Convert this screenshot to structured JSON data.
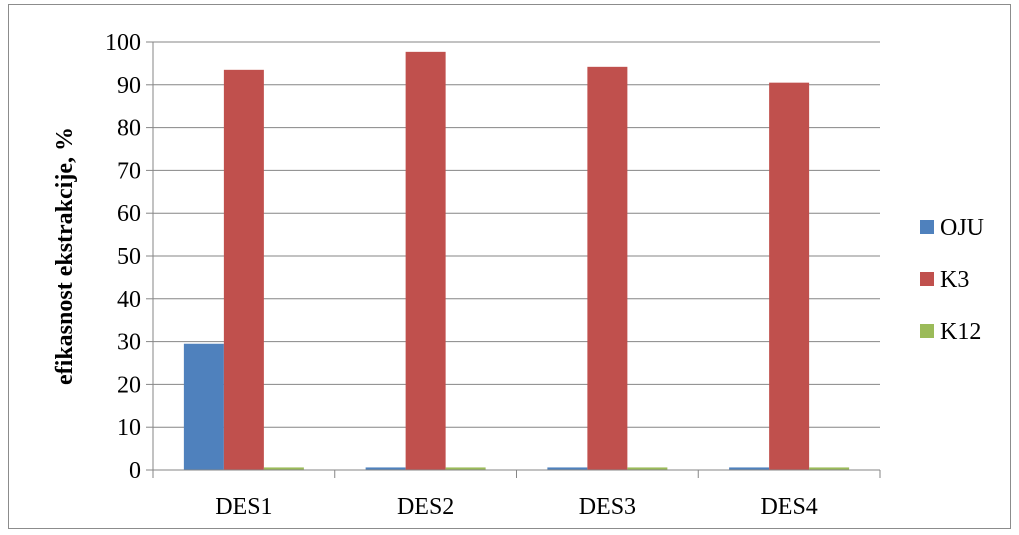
{
  "chart_data": {
    "type": "bar",
    "title": "",
    "xlabel": "",
    "ylabel": "efikasnost ekstrakcije, %",
    "categories": [
      "DES1",
      "DES2",
      "DES3",
      "DES4"
    ],
    "series": [
      {
        "name": "OJU",
        "values": [
          29.5,
          0,
          0,
          0
        ],
        "color": "#4f81bd"
      },
      {
        "name": "K3",
        "values": [
          93.5,
          97.7,
          94.2,
          90.5
        ],
        "color": "#c0504d"
      },
      {
        "name": "K12",
        "values": [
          0,
          0,
          0,
          0
        ],
        "color": "#9bbb59"
      }
    ],
    "ylim": [
      0,
      100
    ],
    "yticks": [
      "0",
      "10",
      "20",
      "30",
      "40",
      "50",
      "60",
      "70",
      "80",
      "90",
      "100"
    ],
    "grid": true,
    "legend": "right"
  }
}
